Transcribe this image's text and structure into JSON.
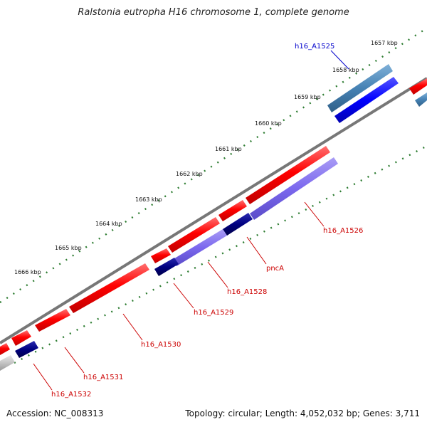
{
  "title": "Ralstonia eutropha H16 chromosome 1, complete genome",
  "footer": {
    "accession": "Accession: NC_008313",
    "summary": "Topology: circular; Length: 4,052,032 bp; Genes: 3,711"
  },
  "colors": {
    "forward_cds": "#ff0000",
    "reverse_cds": "#000080",
    "reverse_cds_light": "#7b68ee",
    "highlight": "#0000ff",
    "highlight_light": "#4682b4",
    "backbone": "#777777",
    "tick": "#2e7d32",
    "label_red": "#cc0000",
    "label_blue": "#0000cc"
  },
  "kbp_labels": [
    "1657 kbp",
    "1658 kbp",
    "1659 kbp",
    "1660 kbp",
    "1661 kbp",
    "1662 kbp",
    "1663 kbp",
    "1664 kbp",
    "1665 kbp",
    "1666 kbp"
  ],
  "gene_labels": [
    {
      "text": "h16_A1525",
      "color": "blue"
    },
    {
      "text": "h16_A1526",
      "color": "red"
    },
    {
      "text": "pncA",
      "color": "red"
    },
    {
      "text": "h16_A1528",
      "color": "red"
    },
    {
      "text": "h16_A1529",
      "color": "red"
    },
    {
      "text": "h16_A1530",
      "color": "red"
    },
    {
      "text": "h16_A1531",
      "color": "red"
    },
    {
      "text": "h16_A1532",
      "color": "red"
    }
  ]
}
